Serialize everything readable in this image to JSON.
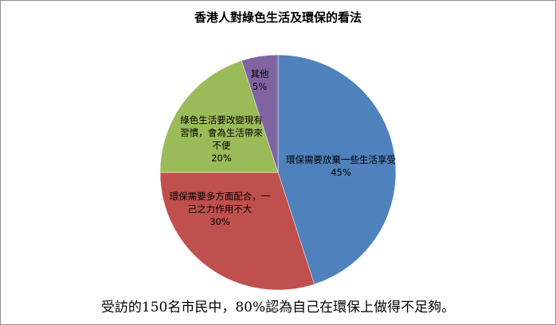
{
  "chart_data": {
    "type": "pie",
    "title": "香港人對綠色生活及環保的看法",
    "categories": [
      "環保需要放棄一些生活享受",
      "環保需要多方面配合，一己之力作用不大",
      "綠色生活要改變現有習慣，會為生活帶來不便",
      "其他"
    ],
    "values": [
      45,
      30,
      20,
      5
    ],
    "value_labels": [
      "45%",
      "30%",
      "20%",
      "5%"
    ],
    "colors": [
      "#4f81bd",
      "#c0504d",
      "#9bbb59",
      "#8064a2"
    ],
    "annotation": "受訪的150名市民中，80%認為自己在環保上做得不足夠。"
  }
}
